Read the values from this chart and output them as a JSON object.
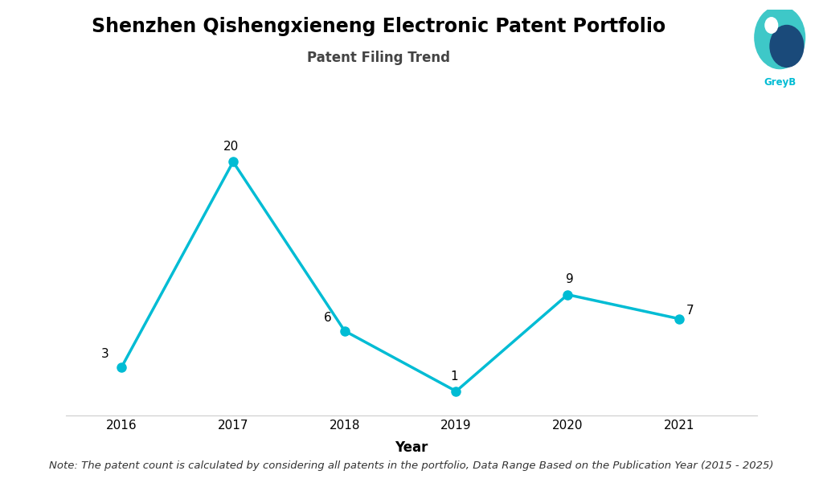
{
  "title": "Shenzhen Qishengxieneng Electronic Patent Portfolio",
  "subtitle": "Patent Filing Trend",
  "xlabel": "Year",
  "years": [
    2016,
    2017,
    2018,
    2019,
    2020,
    2021
  ],
  "values": [
    3,
    20,
    6,
    1,
    9,
    7
  ],
  "line_color": "#00BCD4",
  "marker_color": "#00BCD4",
  "marker_size": 8,
  "line_width": 2.5,
  "bg_color": "#FFFFFF",
  "title_fontsize": 17,
  "subtitle_fontsize": 12,
  "xlabel_fontsize": 12,
  "annotation_fontsize": 11,
  "note_text": "Note: The patent count is calculated by considering all patents in the portfolio, Data Range Based on the Publication Year (2015 - 2025)",
  "note_fontsize": 9.5,
  "ylim": [
    -1,
    23
  ],
  "greyb_color": "#00BCD4",
  "logo_outer_color": "#00BCD4",
  "logo_inner_color": "#1A5276",
  "logo_dot_color": "#FFFFFF"
}
